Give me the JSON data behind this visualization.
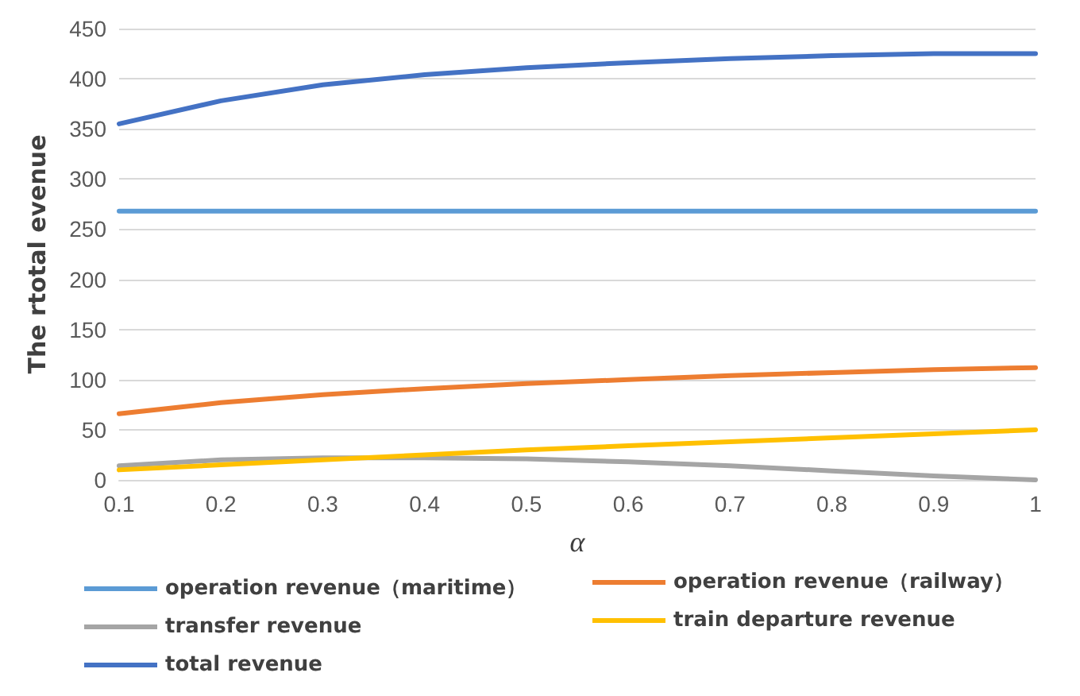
{
  "chart_data": {
    "type": "line",
    "xlabel": "α",
    "ylabel": "The rtotal evenue",
    "categories": [
      "0.1",
      "0.2",
      "0.3",
      "0.4",
      "0.5",
      "0.6",
      "0.7",
      "0.8",
      "0.9",
      "1"
    ],
    "ylim": [
      0,
      450
    ],
    "yticks": [
      0,
      50,
      100,
      150,
      200,
      250,
      300,
      350,
      400,
      450
    ],
    "grid": "y",
    "legend": "bottom",
    "marker": "none",
    "line_style": "solid",
    "series": [
      {
        "name": "operation revenue（maritime）",
        "color": "#5b9bd5",
        "values": [
          268,
          268,
          268,
          268,
          268,
          268,
          268,
          268,
          268,
          268
        ]
      },
      {
        "name": "operation revenue（railway）",
        "color": "#ed7d31",
        "values": [
          66,
          77,
          85,
          91,
          96,
          100,
          104,
          107,
          110,
          112
        ]
      },
      {
        "name": "transfer revenue",
        "color": "#a5a5a5",
        "values": [
          14,
          20,
          22,
          22,
          21,
          18,
          14,
          9,
          4,
          0
        ]
      },
      {
        "name": "train departure revenue",
        "color": "#ffc000",
        "values": [
          10,
          15,
          20,
          25,
          30,
          34,
          38,
          42,
          46,
          50
        ]
      },
      {
        "name": "total revenue",
        "color": "#4472c4",
        "values": [
          355,
          378,
          394,
          404,
          411,
          416,
          420,
          423,
          425,
          425
        ]
      }
    ]
  }
}
